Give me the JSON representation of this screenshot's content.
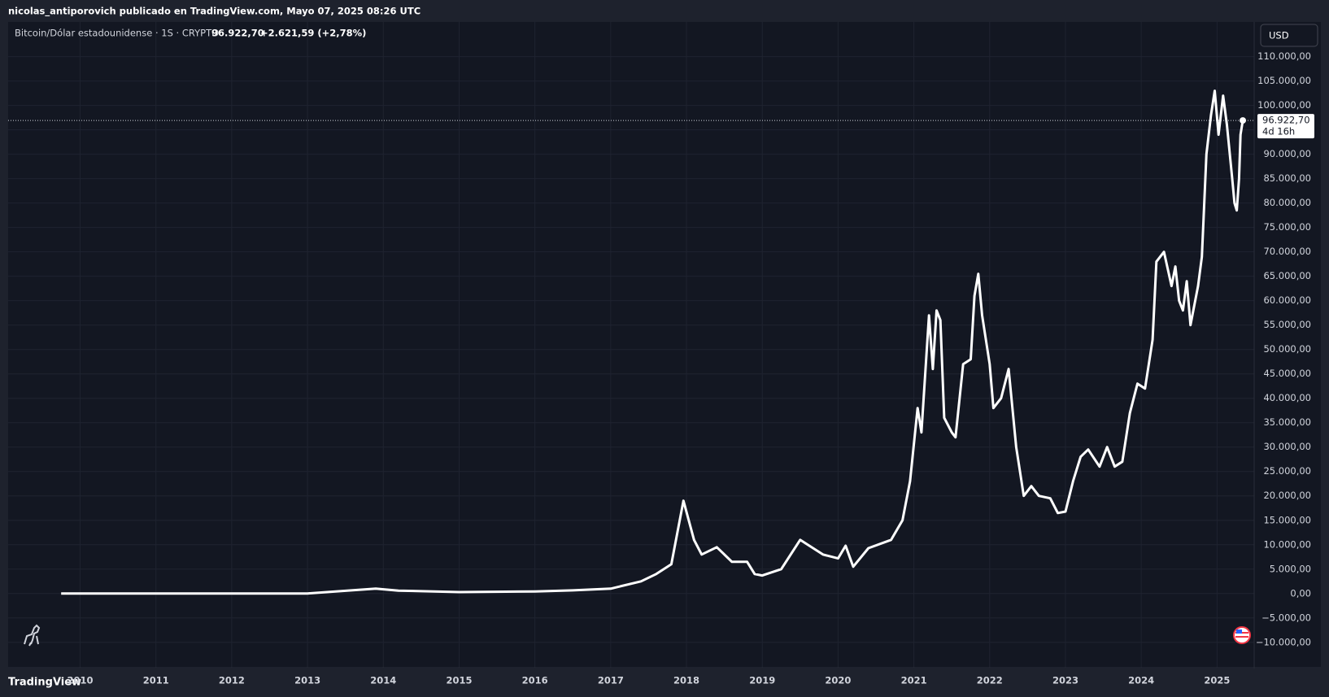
{
  "header": "nicolas_antiporovich publicado en TradingView.com, Mayo 07, 2025 08:26 UTC",
  "brand": "TradingView",
  "chart_data": {
    "type": "line",
    "title": "Bitcoin/Dólar estadounidense · 1S · CRYPTO",
    "currency": "USD",
    "last_price": {
      "value": 96922.7,
      "label": "96.922,70"
    },
    "change": {
      "value": 2621.59,
      "label": "+2.621,59 (+2,78%)"
    },
    "countdown": "4d 16h",
    "color": "#ffffff",
    "grid": true,
    "xlim": [
      2009.05,
      2025.49
    ],
    "ylim": [
      -15200,
      117100
    ],
    "xticks": [
      2010,
      2011,
      2012,
      2013,
      2014,
      2015,
      2016,
      2017,
      2018,
      2019,
      2020,
      2021,
      2022,
      2023,
      2024,
      2025
    ],
    "yticks": [
      {
        "value": -10000,
        "label": "−10.000,00"
      },
      {
        "value": -5000,
        "label": "−5.000,00"
      },
      {
        "value": 0,
        "label": "0,00"
      },
      {
        "value": 5000,
        "label": "5.000,00"
      },
      {
        "value": 10000,
        "label": "10.000,00"
      },
      {
        "value": 15000,
        "label": "15.000,00"
      },
      {
        "value": 20000,
        "label": "20.000,00"
      },
      {
        "value": 25000,
        "label": "25.000,00"
      },
      {
        "value": 30000,
        "label": "30.000,00"
      },
      {
        "value": 35000,
        "label": "35.000,00"
      },
      {
        "value": 40000,
        "label": "40.000,00"
      },
      {
        "value": 45000,
        "label": "45.000,00"
      },
      {
        "value": 50000,
        "label": "50.000,00"
      },
      {
        "value": 55000,
        "label": "55.000,00"
      },
      {
        "value": 60000,
        "label": "60.000,00"
      },
      {
        "value": 65000,
        "label": "65.000,00"
      },
      {
        "value": 70000,
        "label": "70.000,00"
      },
      {
        "value": 75000,
        "label": "75.000,00"
      },
      {
        "value": 80000,
        "label": "80.000,00"
      },
      {
        "value": 85000,
        "label": "85.000,00"
      },
      {
        "value": 90000,
        "label": "90.000,00"
      },
      {
        "value": 95000,
        "label": "95.000,00"
      },
      {
        "value": 100000,
        "label": "100.000,00"
      },
      {
        "value": 105000,
        "label": "105.000,00"
      },
      {
        "value": 110000,
        "label": "110.000,00"
      }
    ],
    "x": [
      2009.75,
      2011.0,
      2012.0,
      2013.0,
      2013.9,
      2014.2,
      2015.0,
      2016.0,
      2016.5,
      2017.0,
      2017.4,
      2017.6,
      2017.8,
      2017.96,
      2018.1,
      2018.2,
      2018.4,
      2018.6,
      2018.8,
      2018.9,
      2019.0,
      2019.25,
      2019.5,
      2019.6,
      2019.8,
      2020.0,
      2020.1,
      2020.2,
      2020.4,
      2020.7,
      2020.85,
      2020.95,
      2021.05,
      2021.1,
      2021.2,
      2021.25,
      2021.3,
      2021.35,
      2021.4,
      2021.5,
      2021.55,
      2021.65,
      2021.75,
      2021.8,
      2021.85,
      2021.9,
      2022.0,
      2022.05,
      2022.15,
      2022.25,
      2022.35,
      2022.45,
      2022.55,
      2022.65,
      2022.8,
      2022.9,
      2023.0,
      2023.1,
      2023.2,
      2023.3,
      2023.45,
      2023.55,
      2023.65,
      2023.75,
      2023.85,
      2023.95,
      2024.05,
      2024.15,
      2024.2,
      2024.3,
      2024.4,
      2024.45,
      2024.5,
      2024.55,
      2024.6,
      2024.65,
      2024.75,
      2024.8,
      2024.86,
      2024.92,
      2024.97,
      2025.02,
      2025.08,
      2025.13,
      2025.2,
      2025.23,
      2025.26,
      2025.29,
      2025.31,
      2025.34
    ],
    "values": [
      0,
      0,
      5,
      13,
      1000,
      600,
      300,
      430,
      650,
      1000,
      2500,
      4000,
      6000,
      19000,
      11000,
      8000,
      9500,
      6500,
      6500,
      4000,
      3700,
      5000,
      11000,
      10000,
      8000,
      7200,
      9800,
      5500,
      9300,
      11000,
      15000,
      23000,
      38000,
      33000,
      57000,
      46000,
      58000,
      56000,
      36000,
      33000,
      32000,
      47000,
      48000,
      61000,
      65500,
      57000,
      47000,
      38000,
      40000,
      46000,
      30000,
      20000,
      22000,
      20000,
      19500,
      16500,
      16800,
      23000,
      28000,
      29500,
      26000,
      30000,
      26000,
      27000,
      37000,
      43000,
      42000,
      52000,
      68000,
      70000,
      63000,
      67000,
      60000,
      58000,
      64000,
      55000,
      63000,
      69000,
      90000,
      98000,
      103000,
      94000,
      102000,
      96000,
      85000,
      80000,
      78500,
      85000,
      94000,
      96922.7
    ]
  }
}
